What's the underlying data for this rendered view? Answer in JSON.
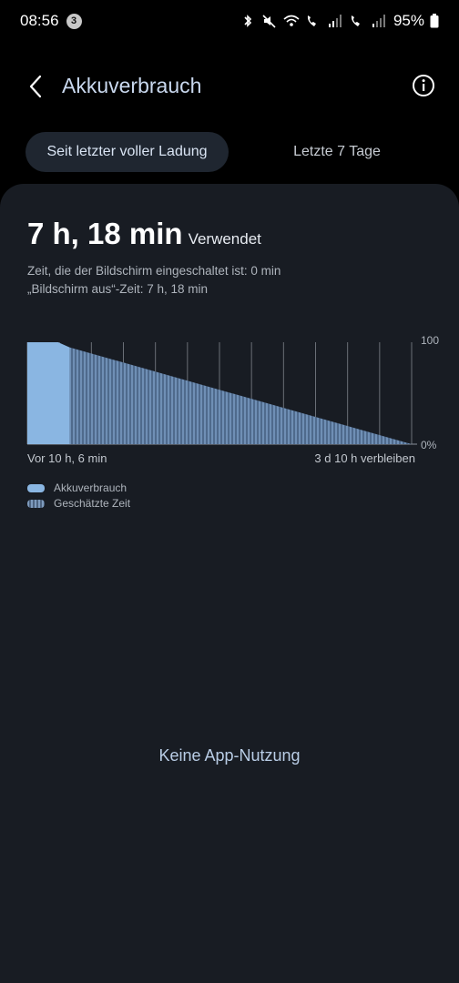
{
  "status_bar": {
    "time": "08:56",
    "notification_count": "3",
    "battery_percent": "95%",
    "icons": [
      "bluetooth-icon",
      "mute-icon",
      "wifi-calling-icon",
      "call-sim1-icon",
      "signal-icon",
      "call-sim2-icon",
      "signal-icon",
      "battery-icon"
    ]
  },
  "header": {
    "title": "Akkuverbrauch",
    "back_icon": "chevron-left-icon",
    "info_icon": "info-icon"
  },
  "tabs": [
    {
      "label": "Seit letzter voller Ladung",
      "active": true
    },
    {
      "label": "Letzte 7 Tage",
      "active": false
    }
  ],
  "summary": {
    "usage_value": "7 h, 18 min",
    "usage_label": "Verwendet",
    "screen_on": "Zeit, die der Bildschirm eingeschaltet ist: 0 min",
    "screen_off": "„Bildschirm aus“-Zeit: 7 h, 18 min"
  },
  "chart_data": {
    "type": "area",
    "y_tick_labels": [
      "100",
      "0%"
    ],
    "ylim": [
      0,
      100
    ],
    "x_start_label": "Vor 10 h, 6 min",
    "x_end_label": "3 d 10 h verbleiben",
    "grid": true,
    "series": [
      {
        "name": "Akkuverbrauch",
        "x": [
          0,
          0.08,
          0.11
        ],
        "values": [
          100,
          100,
          95
        ]
      },
      {
        "name": "Geschätzte Zeit",
        "x": [
          0.11,
          1.0
        ],
        "values": [
          95,
          0
        ]
      }
    ],
    "colors": {
      "used": "#8ab6e2",
      "estimated": "#6f8fb5"
    }
  },
  "legend": [
    {
      "label": "Akkuverbrauch",
      "swatch": "solid"
    },
    {
      "label": "Geschätzte Zeit",
      "swatch": "striped"
    }
  ],
  "empty_state": "Keine App-Nutzung"
}
